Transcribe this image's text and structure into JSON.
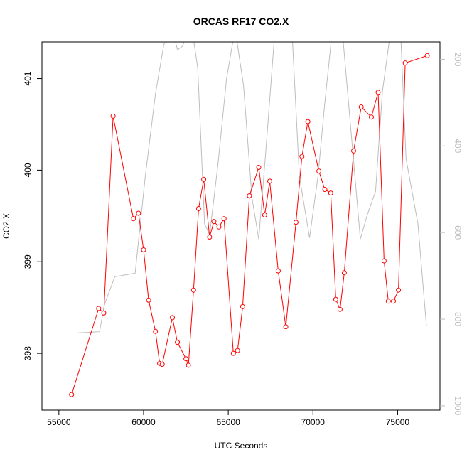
{
  "chart_data": {
    "type": "line",
    "title": "ORCAS RF17 CO2.X",
    "xlabel": "UTC Seconds",
    "ylabel": "CO2.X",
    "xlim": [
      54000,
      77500
    ],
    "ylim": [
      397.38,
      401.4
    ],
    "x_ticks": [
      55000,
      60000,
      65000,
      70000,
      75000
    ],
    "y_ticks": [
      398,
      399,
      400,
      401
    ],
    "y2lim": [
      1010,
      160
    ],
    "y2_ticks": [
      200,
      400,
      600,
      800,
      1000
    ],
    "grid": false,
    "series": [
      {
        "color": "#ff0000",
        "marker": "circle",
        "points": [
          [
            55750,
            397.55
          ],
          [
            57350,
            398.49
          ],
          [
            57650,
            398.44
          ],
          [
            58200,
            400.59
          ],
          [
            59400,
            399.47
          ],
          [
            59700,
            399.53
          ],
          [
            60000,
            399.13
          ],
          [
            60300,
            398.58
          ],
          [
            60700,
            398.24
          ],
          [
            60950,
            397.89
          ],
          [
            61100,
            397.88
          ],
          [
            61700,
            398.39
          ],
          [
            62000,
            398.12
          ],
          [
            62500,
            397.94
          ],
          [
            62650,
            397.87
          ],
          [
            62950,
            398.69
          ],
          [
            63250,
            399.58
          ],
          [
            63550,
            399.9
          ],
          [
            63900,
            399.27
          ],
          [
            64150,
            399.44
          ],
          [
            64450,
            399.38
          ],
          [
            64750,
            399.47
          ],
          [
            65300,
            398.0
          ],
          [
            65550,
            398.03
          ],
          [
            65850,
            398.51
          ],
          [
            66250,
            399.72
          ],
          [
            66800,
            400.03
          ],
          [
            67150,
            399.51
          ],
          [
            67450,
            399.88
          ],
          [
            67950,
            398.9
          ],
          [
            68400,
            398.29
          ],
          [
            69000,
            399.43
          ],
          [
            69350,
            400.15
          ],
          [
            69700,
            400.53
          ],
          [
            70350,
            399.99
          ],
          [
            70700,
            399.79
          ],
          [
            71050,
            399.75
          ],
          [
            71350,
            398.59
          ],
          [
            71600,
            398.48
          ],
          [
            71850,
            398.88
          ],
          [
            72400,
            400.21
          ],
          [
            72850,
            400.69
          ],
          [
            73450,
            400.58
          ],
          [
            73850,
            400.85
          ],
          [
            74200,
            399.01
          ],
          [
            74450,
            398.57
          ],
          [
            74750,
            398.57
          ],
          [
            75050,
            398.69
          ],
          [
            75450,
            401.17
          ],
          [
            76750,
            401.25
          ]
        ]
      },
      {
        "color": "#bdbdbd",
        "axis": "right",
        "points": [
          [
            56000,
            832
          ],
          [
            57400,
            829
          ],
          [
            57700,
            765
          ],
          [
            58300,
            702
          ],
          [
            59500,
            694
          ],
          [
            60100,
            470
          ],
          [
            60700,
            280
          ],
          [
            61200,
            165
          ],
          [
            61800,
            147
          ],
          [
            62000,
            178
          ],
          [
            62300,
            170
          ],
          [
            62800,
            115
          ],
          [
            63200,
            220
          ],
          [
            63600,
            580
          ],
          [
            63900,
            605
          ],
          [
            64400,
            440
          ],
          [
            64900,
            245
          ],
          [
            65400,
            130
          ],
          [
            65900,
            260
          ],
          [
            66400,
            520
          ],
          [
            66800,
            615
          ],
          [
            67200,
            420
          ],
          [
            67800,
            110
          ],
          [
            68200,
            60
          ],
          [
            68800,
            165
          ],
          [
            69200,
            470
          ],
          [
            69800,
            612
          ],
          [
            70300,
            470
          ],
          [
            70700,
            300
          ],
          [
            71100,
            150
          ],
          [
            71700,
            120
          ],
          [
            72200,
            345
          ],
          [
            72800,
            615
          ],
          [
            73200,
            560
          ],
          [
            73700,
            505
          ],
          [
            74100,
            275
          ],
          [
            74500,
            160
          ],
          [
            75200,
            160
          ],
          [
            75500,
            430
          ],
          [
            76200,
            580
          ],
          [
            76700,
            815
          ]
        ]
      }
    ]
  }
}
